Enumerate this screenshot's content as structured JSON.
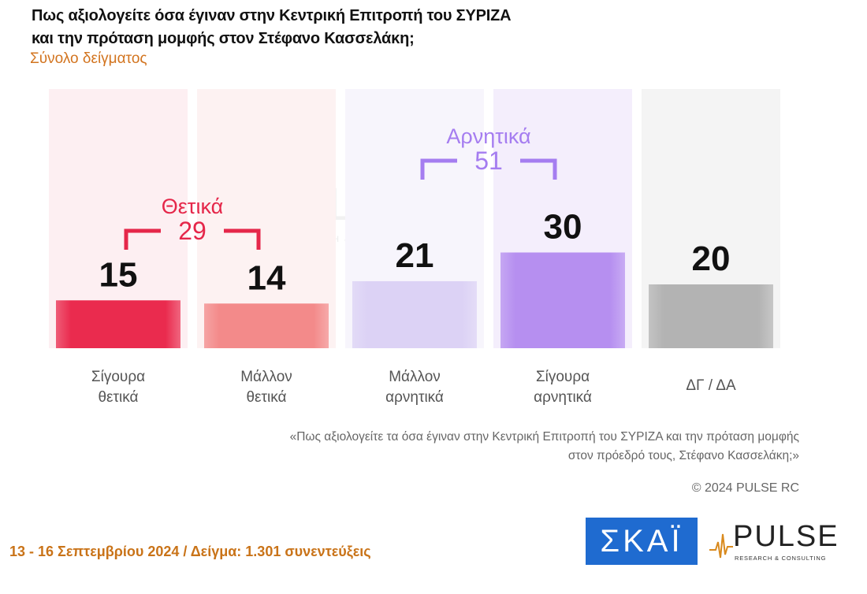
{
  "title_line1": "Πως αξιολογείτε όσα έγιναν στην Κεντρική Επιτροπή του ΣΥΡΙΖΑ",
  "title_line2": "και την πρόταση μομφής στον Στέφανο Κασσελάκη;",
  "subtitle": "Σύνολο δείγματος",
  "chart_data": {
    "type": "bar",
    "categories": [
      [
        "Σίγουρα",
        "θετικά"
      ],
      [
        "Μάλλον",
        "θετικά"
      ],
      [
        "Μάλλον",
        "αρνητικά"
      ],
      [
        "Σίγουρα",
        "αρνητικά"
      ],
      [
        "ΔΓ / ΔΑ"
      ]
    ],
    "values": [
      15,
      14,
      21,
      30,
      20
    ],
    "colors": [
      "#ea2b4e",
      "#f38a8a",
      "#dcd2f5",
      "#b68ff0",
      "#b3b3b3"
    ],
    "ylim": [
      0,
      30
    ],
    "groups": [
      {
        "label": "Θετικά",
        "value": "29",
        "from": 0,
        "to": 1,
        "color": "#e5274a"
      },
      {
        "label": "Αρνητικά",
        "value": "51",
        "from": 2,
        "to": 3,
        "color": "#a57df0"
      }
    ]
  },
  "quote_line1": "«Πως αξιολογείτε τα όσα έγιναν στην Κεντρική Επιτροπή του ΣΥΡΙΖΑ και την πρόταση μομφής",
  "quote_line2": "στον πρόεδρό τους, Στέφανο Κασσελάκη;»",
  "copyright": "© 2024 PULSE RC",
  "footer": "13 - 16 Σεπτεμβρίου 2024  /  Δείγμα:  1.301 συνεντεύξεις",
  "logos": {
    "skai": "ΣΚΑΪ",
    "pulse": "PULSE",
    "pulse_sub": "RESEARCH & CONSULTING"
  }
}
